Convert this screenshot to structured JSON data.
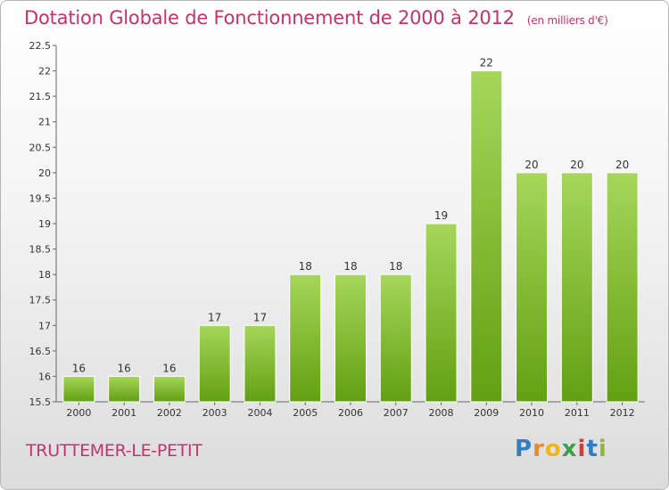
{
  "header": {
    "title": "Dotation Globale de Fonctionnement de 2000 à 2012",
    "subtitle": "(en milliers d'€)"
  },
  "footer": {
    "town": "TRUTTEMER-LE-PETIT",
    "brand": "Proxiti"
  },
  "colors": {
    "title": "#c4336a",
    "bar_top": "#a6d65a",
    "bar_bottom": "#62a012"
  },
  "chart_data": {
    "type": "bar",
    "categories": [
      "2000",
      "2001",
      "2002",
      "2003",
      "2004",
      "2005",
      "2006",
      "2007",
      "2008",
      "2009",
      "2010",
      "2011",
      "2012"
    ],
    "values": [
      16,
      16,
      16,
      17,
      17,
      18,
      18,
      18,
      19,
      22,
      20,
      20,
      20
    ],
    "ylim": [
      15.5,
      22.5
    ],
    "yticks": [
      "15.5",
      "16",
      "16.5",
      "17",
      "17.5",
      "18",
      "18.5",
      "19",
      "19.5",
      "20",
      "20.5",
      "21",
      "21.5",
      "22",
      "22.5"
    ],
    "grid": false,
    "legend": "none"
  }
}
